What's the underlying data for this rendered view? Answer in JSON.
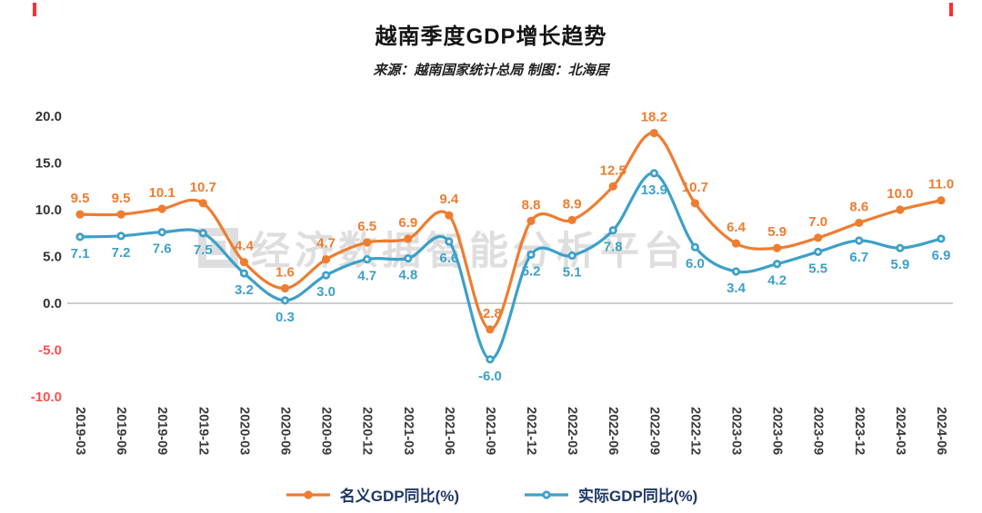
{
  "page": {
    "watermark_text": "经济数据智能分析平台"
  },
  "colors": {
    "nominal": "#ED7D31",
    "real": "#3DA0C8",
    "axis_text": "#333333",
    "negative_tick": "#FF4E4E",
    "x_label": "#3a3a3a",
    "legend_text": "#1F3864",
    "watermark": "#C9C9C9",
    "crop_mark": "#FF2D2D"
  },
  "chart_data": {
    "type": "line",
    "title": "越南季度GDP增长趋势",
    "subtitle": "来源：越南国家统计总局 制图：北海居",
    "categories": [
      "2019-03",
      "2019-06",
      "2019-09",
      "2019-12",
      "2020-03",
      "2020-06",
      "2020-09",
      "2020-12",
      "2021-03",
      "2021-06",
      "2021-09",
      "2021-12",
      "2022-03",
      "2022-06",
      "2022-09",
      "2022-12",
      "2023-03",
      "2023-06",
      "2023-09",
      "2023-12",
      "2024-03",
      "2024-06"
    ],
    "series": [
      {
        "name": "名义GDP同比(%)",
        "color": "#ED7D31",
        "values": [
          9.5,
          9.5,
          10.1,
          10.7,
          4.4,
          1.6,
          4.7,
          6.5,
          6.9,
          9.4,
          -2.8,
          8.8,
          8.9,
          12.5,
          18.2,
          10.7,
          6.4,
          5.9,
          7.0,
          8.6,
          10.0,
          11.0
        ]
      },
      {
        "name": "实际GDP同比(%)",
        "color": "#3DA0C8",
        "values": [
          7.1,
          7.2,
          7.6,
          7.5,
          3.2,
          0.3,
          3.0,
          4.7,
          4.8,
          6.6,
          -6.0,
          5.2,
          5.1,
          7.8,
          13.9,
          6.0,
          3.4,
          4.2,
          5.5,
          6.7,
          5.9,
          6.9
        ]
      }
    ],
    "ylim": [
      -10,
      20
    ],
    "yticks": [
      20,
      15,
      10,
      5,
      0,
      -5,
      -10
    ],
    "ytick_labels": [
      "20.0",
      "15.0",
      "10.0",
      "5.0",
      "0.0",
      "-5.0",
      "-10.0"
    ],
    "grid": false,
    "smooth_lines": true,
    "data_labels": true,
    "legend_position": "bottom"
  }
}
